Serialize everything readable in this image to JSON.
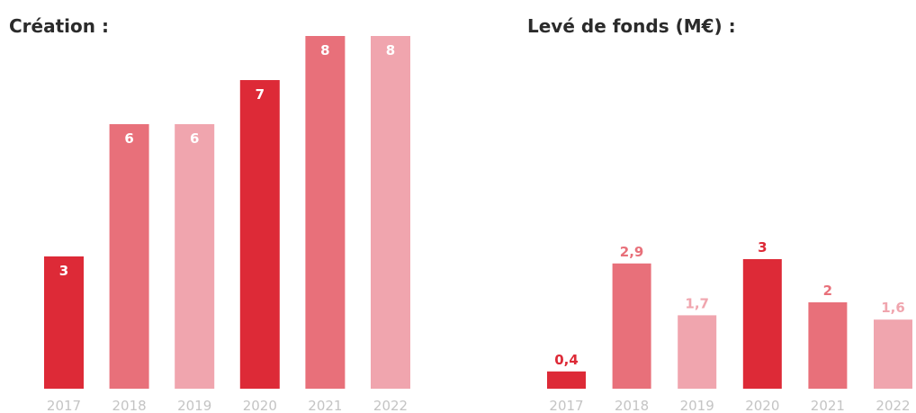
{
  "palette": [
    "#dd2a37",
    "#e8707a",
    "#f0a5ae"
  ],
  "chart_data": [
    {
      "type": "bar",
      "title": "Création :",
      "categories": [
        "2017",
        "2018",
        "2019",
        "2020",
        "2021",
        "2022"
      ],
      "values": [
        3,
        6,
        6,
        7,
        8,
        8
      ],
      "value_labels": [
        "3",
        "6",
        "6",
        "7",
        "8",
        "8"
      ],
      "ylim": [
        0,
        8
      ],
      "label_position": "inside",
      "grid": false
    },
    {
      "type": "bar",
      "title": "Levé de fonds (M€) :",
      "categories": [
        "2017",
        "2018",
        "2019",
        "2020",
        "2021",
        "2022"
      ],
      "values": [
        0.4,
        2.9,
        1.7,
        3,
        2,
        1.6
      ],
      "value_labels": [
        "0,4",
        "2,9",
        "1,7",
        "3",
        "2",
        "1,6"
      ],
      "ylim": [
        0,
        3
      ],
      "label_position": "above",
      "grid": false
    }
  ]
}
